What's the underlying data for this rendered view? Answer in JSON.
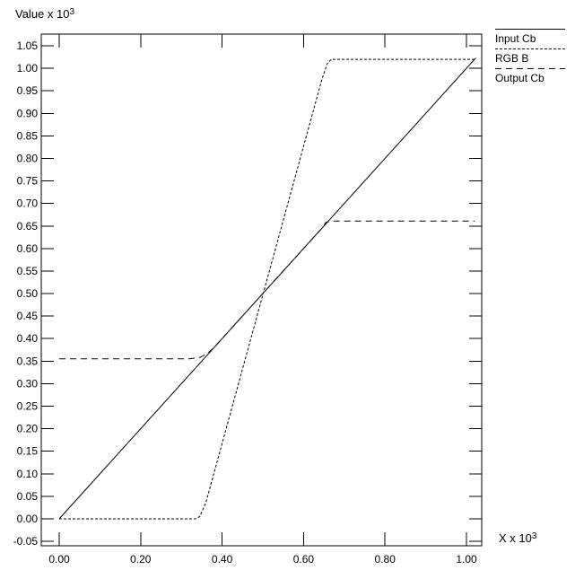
{
  "chart_data": {
    "type": "line",
    "title": "",
    "ylabel_base": "Value x 10",
    "ylabel_exp": "3",
    "xlabel_base": "X x 10",
    "xlabel_exp": "3",
    "xlim": [
      -0.045,
      1.037
    ],
    "ylim": [
      -0.06,
      1.08
    ],
    "grid": false,
    "legend_position": "top-right",
    "background_color": "#ffffff",
    "axis_color": "#000000",
    "xticks": [
      0.0,
      0.2,
      0.4,
      0.6,
      0.8,
      1.0
    ],
    "xtick_labels": [
      "0.00",
      "0.20",
      "0.40",
      "0.60",
      "0.80",
      "1.00"
    ],
    "yticks": [
      -0.05,
      0.0,
      0.05,
      0.1,
      0.15,
      0.2,
      0.25,
      0.3,
      0.35,
      0.4,
      0.45,
      0.5,
      0.55,
      0.6,
      0.65,
      0.7,
      0.75,
      0.8,
      0.85,
      0.9,
      0.95,
      1.0,
      1.05
    ],
    "ytick_labels": [
      "-0.05",
      "0.00",
      "0.05",
      "0.10",
      "0.15",
      "0.20",
      "0.25",
      "0.30",
      "0.35",
      "0.40",
      "0.45",
      "0.50",
      "0.55",
      "0.60",
      "0.65",
      "0.70",
      "0.75",
      "0.80",
      "0.85",
      "0.90",
      "0.95",
      "1.00",
      "1.05"
    ],
    "series": [
      {
        "name": "Input Cb",
        "style": "solid",
        "color": "#000000",
        "points": [
          [
            0,
            0
          ],
          [
            1.023,
            1.023
          ]
        ]
      },
      {
        "name": "RGB B",
        "style": "fine-dash",
        "color": "#000000",
        "points": [
          [
            0,
            0
          ],
          [
            0.335,
            0
          ],
          [
            0.345,
            0.005
          ],
          [
            0.36,
            0.035
          ],
          [
            0.645,
            0.975
          ],
          [
            0.658,
            1.01
          ],
          [
            0.668,
            1.02
          ],
          [
            1.023,
            1.02
          ]
        ]
      },
      {
        "name": "Output Cb",
        "style": "dash",
        "color": "#000000",
        "points": [
          [
            0,
            0.355
          ],
          [
            0.32,
            0.355
          ],
          [
            0.345,
            0.358
          ],
          [
            0.362,
            0.366
          ],
          [
            0.378,
            0.378
          ],
          [
            0.645,
            0.645
          ],
          [
            0.655,
            0.658
          ],
          [
            0.668,
            0.661
          ],
          [
            1.02,
            0.661
          ]
        ]
      }
    ]
  }
}
